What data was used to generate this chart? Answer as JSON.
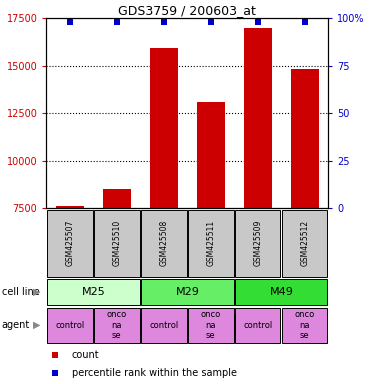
{
  "title": "GDS3759 / 200603_at",
  "samples": [
    "GSM425507",
    "GSM425510",
    "GSM425508",
    "GSM425511",
    "GSM425509",
    "GSM425512"
  ],
  "counts": [
    7600,
    8500,
    15900,
    13100,
    17000,
    14800
  ],
  "percentile_ranks": [
    98,
    98,
    98,
    98,
    98,
    98
  ],
  "ylim_left": [
    7500,
    17500
  ],
  "ylim_right": [
    0,
    100
  ],
  "yticks_left": [
    7500,
    10000,
    12500,
    15000,
    17500
  ],
  "yticks_right": [
    0,
    25,
    50,
    75,
    100
  ],
  "cell_lines": [
    {
      "label": "M25",
      "span": [
        0,
        2
      ],
      "color": "#ccffcc"
    },
    {
      "label": "M29",
      "span": [
        2,
        4
      ],
      "color": "#66ee66"
    },
    {
      "label": "M49",
      "span": [
        4,
        6
      ],
      "color": "#33dd33"
    }
  ],
  "agents": [
    "control",
    "onconase",
    "control",
    "onconase",
    "control",
    "onconase"
  ],
  "agent_color": "#dd88dd",
  "bar_color": "#cc0000",
  "percentile_color": "#0000cc",
  "sample_box_color": "#c8c8c8",
  "left_label_color": "#cc0000",
  "right_label_color": "#0000cc",
  "legend_items": [
    {
      "color": "#cc0000",
      "label": "count"
    },
    {
      "color": "#0000cc",
      "label": "percentile rank within the sample"
    }
  ],
  "fig_width": 3.71,
  "fig_height": 3.84,
  "dpi": 100
}
